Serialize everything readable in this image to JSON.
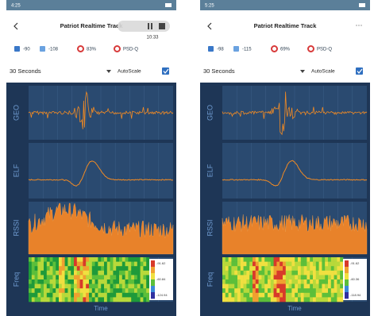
{
  "phones": [
    {
      "status_time": "4:25",
      "title": "Patriot Realtime Track",
      "recording_time": "10:33",
      "legend": [
        "-90",
        "-108",
        "83%",
        "PSD-Q"
      ],
      "range": "30 Seconds",
      "autoscale": "AutoScale",
      "panels": [
        "GEO",
        "ELF",
        "RSSI",
        "Freq"
      ],
      "x_label": "Time",
      "colorbar": [
        "-91.62",
        "-60.84",
        "-124.94"
      ]
    },
    {
      "status_time": "5:25",
      "title": "Patriot Realtime Track",
      "legend": [
        "-98",
        "-115",
        "69%",
        "PSD-Q"
      ],
      "range": "30 Seconds",
      "autoscale": "AutoScale",
      "panels": [
        "GEO",
        "ELF",
        "RSSI",
        "Freq"
      ],
      "x_label": "Time",
      "colorbar": [
        "-91.62",
        "-60.36",
        "-118.94"
      ]
    }
  ]
}
